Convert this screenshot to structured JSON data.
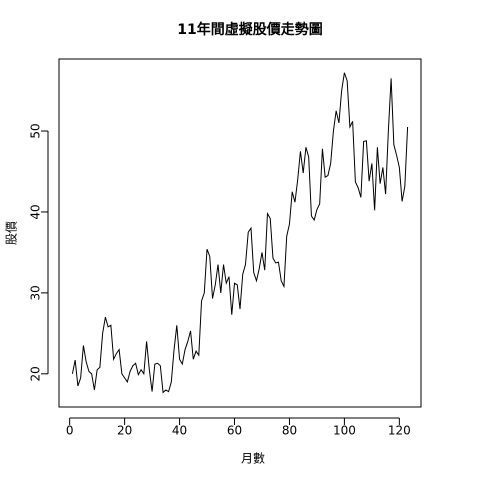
{
  "chart_data": {
    "type": "line",
    "title": "11年間虛擬股價走勢圖",
    "x_label": "月數",
    "y_label": "股價",
    "x": [
      1,
      2,
      3,
      4,
      5,
      6,
      7,
      8,
      9,
      10,
      11,
      12,
      13,
      14,
      15,
      16,
      17,
      18,
      19,
      20,
      21,
      22,
      23,
      24,
      25,
      26,
      27,
      28,
      29,
      30,
      31,
      32,
      33,
      34,
      35,
      36,
      37,
      38,
      39,
      40,
      41,
      42,
      43,
      44,
      45,
      46,
      47,
      48,
      49,
      50,
      51,
      52,
      53,
      54,
      55,
      56,
      57,
      58,
      59,
      60,
      61,
      62,
      63,
      64,
      65,
      66,
      67,
      68,
      69,
      70,
      71,
      72,
      73,
      74,
      75,
      76,
      77,
      78,
      79,
      80,
      81,
      82,
      83,
      84,
      85,
      86,
      87,
      88,
      89,
      90,
      91,
      92,
      93,
      94,
      95,
      96,
      97,
      98,
      99,
      100,
      101,
      102,
      103,
      104,
      105,
      106,
      107,
      108,
      109,
      110,
      111,
      112,
      113,
      114,
      115,
      116,
      117,
      118,
      119,
      120,
      121,
      122,
      123
    ],
    "values": [
      20,
      21.7,
      18.5,
      19.5,
      23.5,
      21.5,
      20.3,
      20,
      18,
      20.5,
      20.8,
      25,
      27,
      25.8,
      26,
      21.8,
      22.5,
      23,
      20,
      19.5,
      19,
      20.3,
      21,
      21.3,
      19.9,
      20.5,
      20,
      24,
      20.5,
      17.8,
      21.2,
      21.3,
      21,
      17.7,
      18,
      17.8,
      19,
      23,
      26,
      21.8,
      21.2,
      23,
      24,
      25.3,
      21.8,
      22.8,
      22.3,
      29,
      30,
      35.4,
      34.5,
      29.3,
      31,
      33.5,
      30,
      33.5,
      31.2,
      32,
      27.3,
      31.2,
      31,
      28,
      32.3,
      33.5,
      37.5,
      38,
      32.5,
      31.5,
      33,
      35,
      32.8,
      39.8,
      39.2,
      34.3,
      33.7,
      33.8,
      31.5,
      30.8,
      37,
      38.5,
      42.5,
      41.2,
      44,
      47.5,
      44.8,
      48,
      46.8,
      39.5,
      39,
      40.3,
      41,
      47.8,
      44.3,
      44.5,
      46,
      50,
      52.5,
      51,
      55,
      57.2,
      56.2,
      50.5,
      51.2,
      43.7,
      43,
      41.8,
      48.7,
      48.8,
      43.8,
      46,
      40.2,
      48,
      43.5,
      45.5,
      42.2,
      50,
      56.5,
      48.3,
      47,
      45.5,
      41.3,
      43.2,
      50.5
    ],
    "color": "#000000",
    "xlim": [
      -3.88,
      127.88
    ],
    "xticks": [
      0,
      20,
      40,
      60,
      80,
      100,
      120
    ],
    "ylim": [
      15.9,
      58.9
    ],
    "yticks": [
      20,
      30,
      40,
      50
    ]
  }
}
